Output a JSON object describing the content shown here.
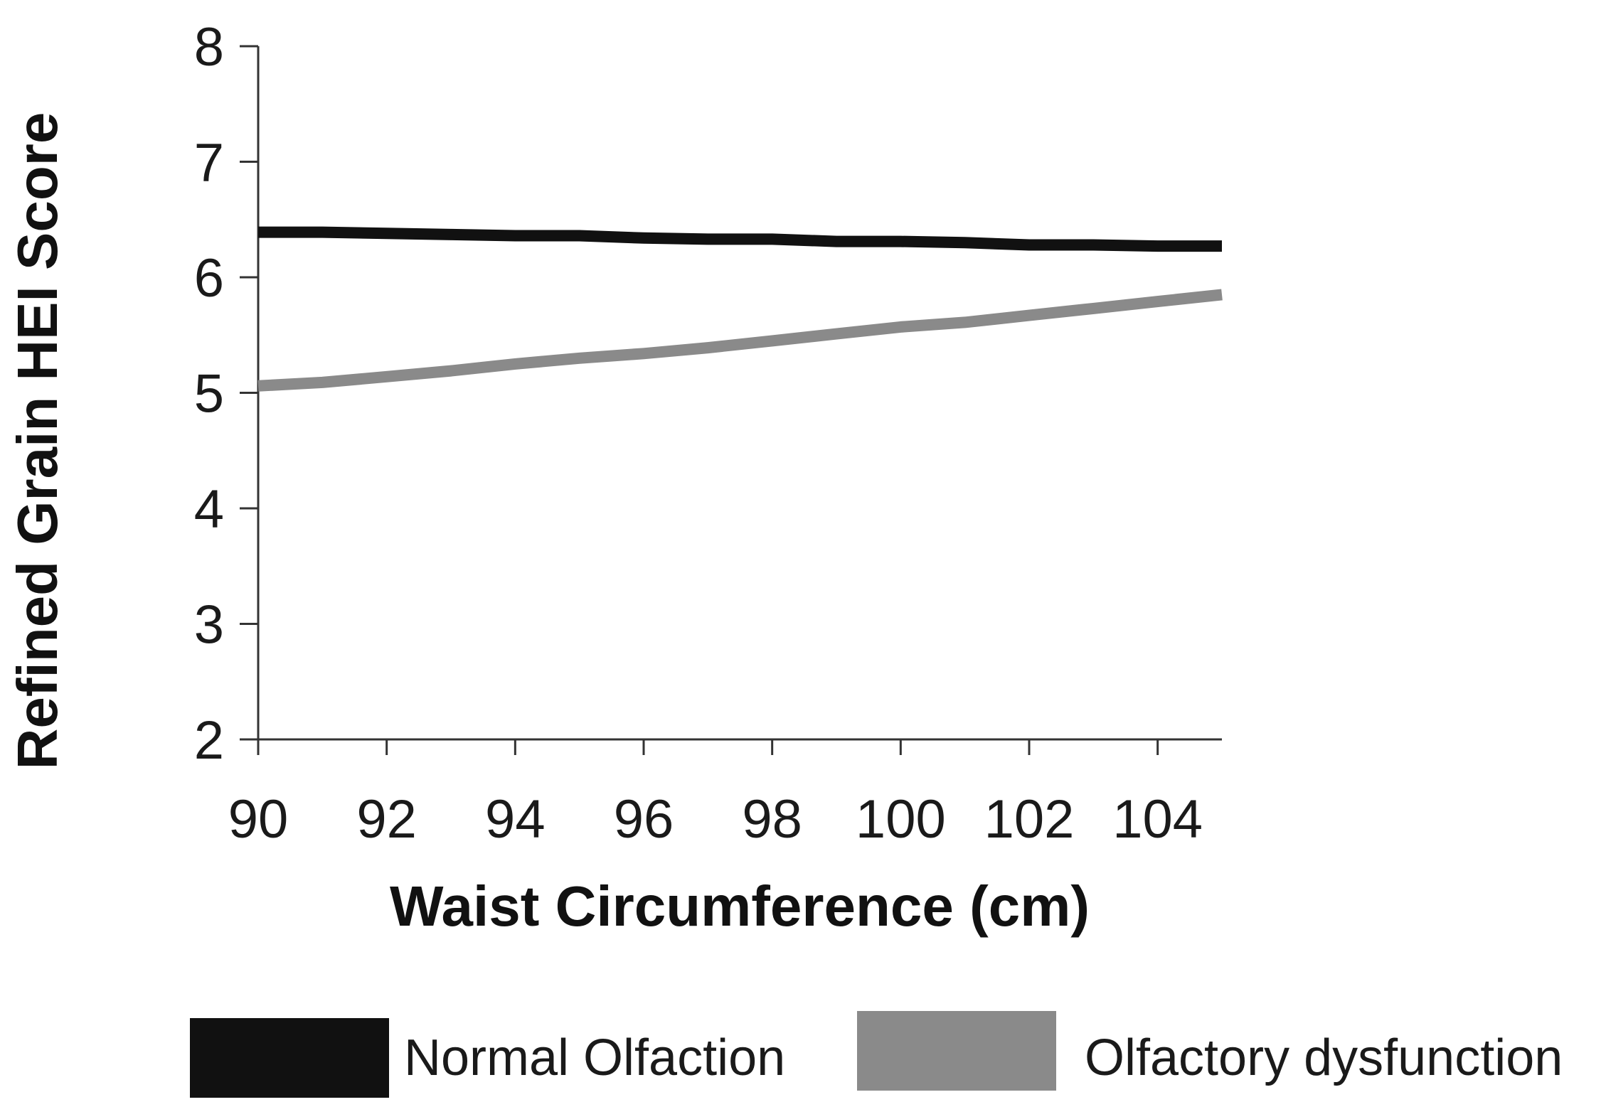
{
  "chart_data": {
    "type": "line",
    "title": "",
    "xlabel": "Waist Circumference (cm)",
    "ylabel": "Refined Grain HEI Score",
    "xlim": [
      90,
      105
    ],
    "ylim": [
      2,
      8
    ],
    "xticks": [
      90,
      92,
      94,
      96,
      98,
      100,
      102,
      104
    ],
    "yticks": [
      2,
      3,
      4,
      5,
      6,
      7,
      8
    ],
    "grid": false,
    "legend_position": "bottom",
    "series": [
      {
        "name": "Normal Olfaction",
        "color": "#111111",
        "x": [
          90,
          91,
          92,
          93,
          94,
          95,
          96,
          97,
          98,
          99,
          100,
          101,
          102,
          103,
          104,
          105
        ],
        "y": [
          6.39,
          6.39,
          6.38,
          6.37,
          6.36,
          6.36,
          6.34,
          6.33,
          6.33,
          6.31,
          6.31,
          6.3,
          6.28,
          6.28,
          6.27,
          6.27
        ]
      },
      {
        "name": "Olfactory dysfunction",
        "color": "#8a8a8a",
        "x": [
          90,
          91,
          92,
          93,
          94,
          95,
          96,
          97,
          98,
          99,
          100,
          101,
          102,
          103,
          104,
          105
        ],
        "y": [
          5.06,
          5.09,
          5.14,
          5.19,
          5.25,
          5.3,
          5.34,
          5.39,
          5.45,
          5.51,
          5.57,
          5.61,
          5.67,
          5.73,
          5.79,
          5.85
        ]
      }
    ]
  }
}
